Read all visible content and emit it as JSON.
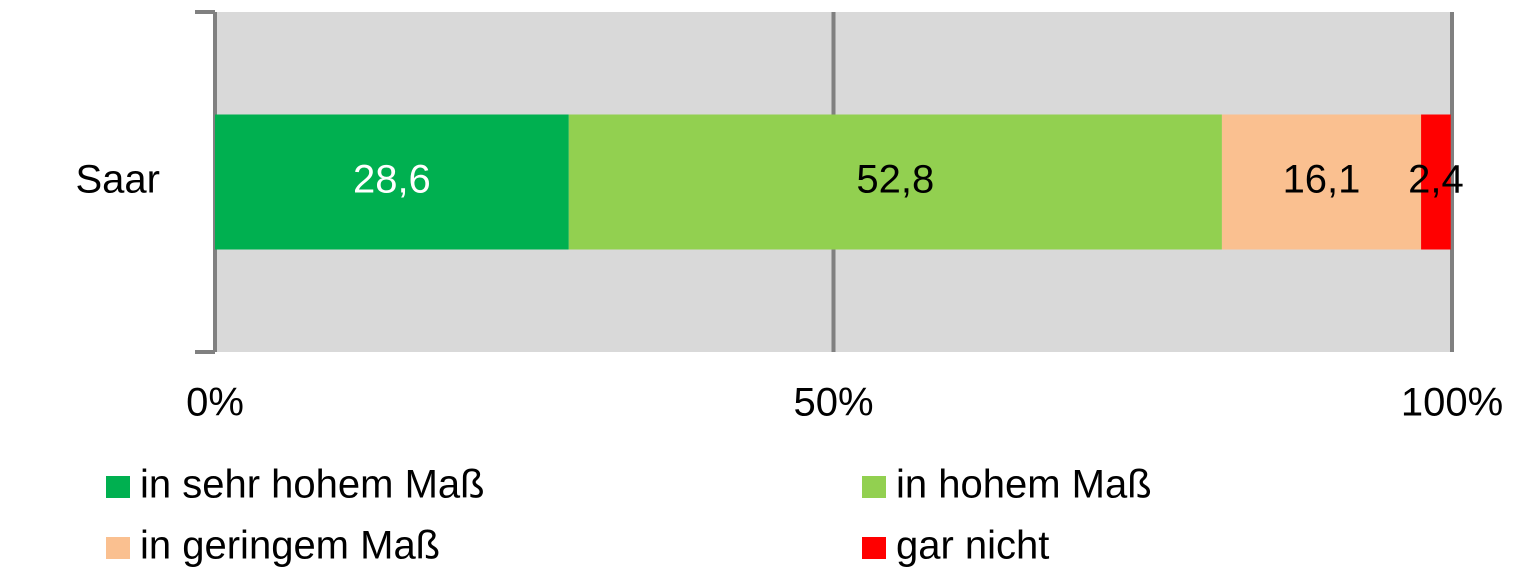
{
  "chart_data": {
    "type": "bar",
    "orientation": "horizontal",
    "stacked": true,
    "categories": [
      "Saar"
    ],
    "series": [
      {
        "name": "in sehr hohem Maß",
        "color": "#00b050",
        "label_color": "#ffffff",
        "values": [
          28.6
        ],
        "value_labels": [
          "28,6"
        ]
      },
      {
        "name": "in hohem Maß",
        "color": "#92d050",
        "label_color": "#000000",
        "values": [
          52.8
        ],
        "value_labels": [
          "52,8"
        ]
      },
      {
        "name": "in geringem Maß",
        "color": "#fac090",
        "label_color": "#000000",
        "values": [
          16.1
        ],
        "value_labels": [
          "16,1"
        ]
      },
      {
        "name": "gar nicht",
        "color": "#ff0000",
        "label_color": "#000000",
        "values": [
          2.4
        ],
        "value_labels": [
          "2,4"
        ]
      }
    ],
    "xlim": [
      0,
      100
    ],
    "xticks": [
      {
        "value": 0,
        "label": "0%"
      },
      {
        "value": 50,
        "label": "50%"
      },
      {
        "value": 100,
        "label": "100%"
      }
    ],
    "grid": true
  }
}
